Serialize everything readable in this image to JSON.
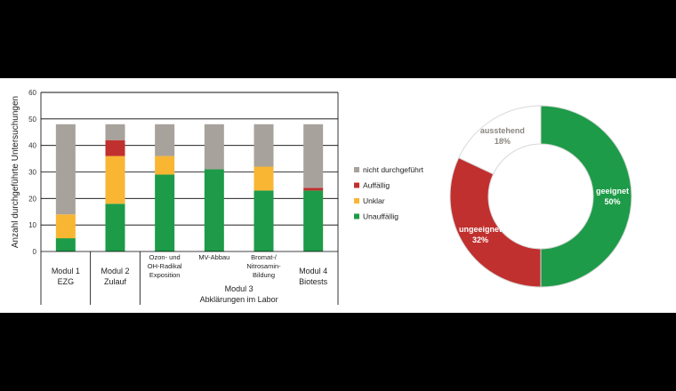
{
  "chart_data": [
    {
      "type": "bar",
      "stacked": true,
      "ylabel": "Anzahl durchgeführte Untersuchungen",
      "ylim": [
        0,
        60
      ],
      "yticks": [
        0,
        10,
        20,
        30,
        40,
        50,
        60
      ],
      "categories": [
        [
          "Modul 1",
          "EZG"
        ],
        [
          "Modul 2",
          "Zulauf"
        ],
        [
          "Ozon- und",
          "OH-Radikal",
          "Exposition"
        ],
        [
          "MV-Abbau"
        ],
        [
          "Bromat-/",
          "Nitrosamin-",
          "Bildung"
        ],
        [
          "Modul 4",
          "Biotests"
        ]
      ],
      "group_label": [
        "Modul 3",
        "Abklärungen im Labor"
      ],
      "series": [
        {
          "name": "Unauffällig",
          "color": "#1d9b48",
          "values": [
            5,
            18,
            29,
            31,
            23,
            23
          ]
        },
        {
          "name": "Unklar",
          "color": "#f8b633",
          "values": [
            9,
            18,
            7,
            0,
            9,
            0
          ]
        },
        {
          "name": "Auffällig",
          "color": "#c0302e",
          "values": [
            0,
            6,
            0,
            0,
            0,
            1
          ]
        },
        {
          "name": "nicht durchgeführt",
          "color": "#a8a29c",
          "values": [
            34,
            6,
            12,
            17,
            16,
            24
          ]
        }
      ],
      "legend_order": [
        "nicht durchgeführt",
        "Auffällig",
        "Unklar",
        "Unauffällig"
      ],
      "legend_position": "right",
      "grid": true
    },
    {
      "type": "pie",
      "donut": true,
      "slices": [
        {
          "name": "geeignet",
          "value": 50,
          "label": "50%",
          "color": "#1d9b48",
          "text_color": "#ffffff"
        },
        {
          "name": "ungeeignet",
          "value": 32,
          "label": "32%",
          "color": "#c0302e",
          "text_color": "#ffffff"
        },
        {
          "name": "ausstehend",
          "value": 18,
          "label": "18%",
          "color": "#ffffff",
          "text_color": "#8a8580"
        }
      ]
    }
  ]
}
